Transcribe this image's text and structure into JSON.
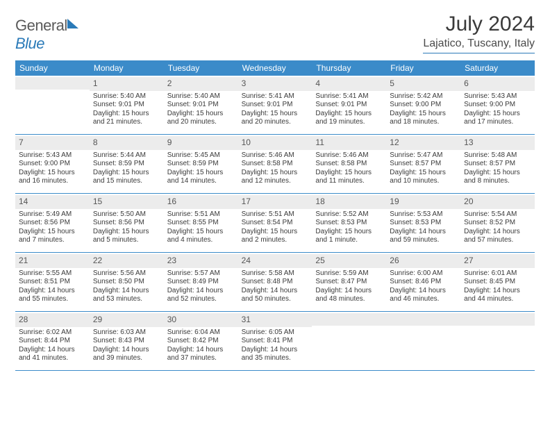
{
  "brand": {
    "word1": "General",
    "word2": "Blue"
  },
  "header": {
    "title": "July 2024",
    "location": "Lajatico, Tuscany, Italy"
  },
  "colors": {
    "brand_blue": "#2a7ab8",
    "header_bg": "#3b8bc9",
    "daynum_bg": "#ececec",
    "text": "#3a3a3a",
    "rule": "#2a7ab8"
  },
  "dow": [
    "Sunday",
    "Monday",
    "Tuesday",
    "Wednesday",
    "Thursday",
    "Friday",
    "Saturday"
  ],
  "weeks": [
    [
      {
        "n": "",
        "sr": "",
        "ss": "",
        "dl": ""
      },
      {
        "n": "1",
        "sr": "Sunrise: 5:40 AM",
        "ss": "Sunset: 9:01 PM",
        "dl": "Daylight: 15 hours and 21 minutes."
      },
      {
        "n": "2",
        "sr": "Sunrise: 5:40 AM",
        "ss": "Sunset: 9:01 PM",
        "dl": "Daylight: 15 hours and 20 minutes."
      },
      {
        "n": "3",
        "sr": "Sunrise: 5:41 AM",
        "ss": "Sunset: 9:01 PM",
        "dl": "Daylight: 15 hours and 20 minutes."
      },
      {
        "n": "4",
        "sr": "Sunrise: 5:41 AM",
        "ss": "Sunset: 9:01 PM",
        "dl": "Daylight: 15 hours and 19 minutes."
      },
      {
        "n": "5",
        "sr": "Sunrise: 5:42 AM",
        "ss": "Sunset: 9:00 PM",
        "dl": "Daylight: 15 hours and 18 minutes."
      },
      {
        "n": "6",
        "sr": "Sunrise: 5:43 AM",
        "ss": "Sunset: 9:00 PM",
        "dl": "Daylight: 15 hours and 17 minutes."
      }
    ],
    [
      {
        "n": "7",
        "sr": "Sunrise: 5:43 AM",
        "ss": "Sunset: 9:00 PM",
        "dl": "Daylight: 15 hours and 16 minutes."
      },
      {
        "n": "8",
        "sr": "Sunrise: 5:44 AM",
        "ss": "Sunset: 8:59 PM",
        "dl": "Daylight: 15 hours and 15 minutes."
      },
      {
        "n": "9",
        "sr": "Sunrise: 5:45 AM",
        "ss": "Sunset: 8:59 PM",
        "dl": "Daylight: 15 hours and 14 minutes."
      },
      {
        "n": "10",
        "sr": "Sunrise: 5:46 AM",
        "ss": "Sunset: 8:58 PM",
        "dl": "Daylight: 15 hours and 12 minutes."
      },
      {
        "n": "11",
        "sr": "Sunrise: 5:46 AM",
        "ss": "Sunset: 8:58 PM",
        "dl": "Daylight: 15 hours and 11 minutes."
      },
      {
        "n": "12",
        "sr": "Sunrise: 5:47 AM",
        "ss": "Sunset: 8:57 PM",
        "dl": "Daylight: 15 hours and 10 minutes."
      },
      {
        "n": "13",
        "sr": "Sunrise: 5:48 AM",
        "ss": "Sunset: 8:57 PM",
        "dl": "Daylight: 15 hours and 8 minutes."
      }
    ],
    [
      {
        "n": "14",
        "sr": "Sunrise: 5:49 AM",
        "ss": "Sunset: 8:56 PM",
        "dl": "Daylight: 15 hours and 7 minutes."
      },
      {
        "n": "15",
        "sr": "Sunrise: 5:50 AM",
        "ss": "Sunset: 8:56 PM",
        "dl": "Daylight: 15 hours and 5 minutes."
      },
      {
        "n": "16",
        "sr": "Sunrise: 5:51 AM",
        "ss": "Sunset: 8:55 PM",
        "dl": "Daylight: 15 hours and 4 minutes."
      },
      {
        "n": "17",
        "sr": "Sunrise: 5:51 AM",
        "ss": "Sunset: 8:54 PM",
        "dl": "Daylight: 15 hours and 2 minutes."
      },
      {
        "n": "18",
        "sr": "Sunrise: 5:52 AM",
        "ss": "Sunset: 8:53 PM",
        "dl": "Daylight: 15 hours and 1 minute."
      },
      {
        "n": "19",
        "sr": "Sunrise: 5:53 AM",
        "ss": "Sunset: 8:53 PM",
        "dl": "Daylight: 14 hours and 59 minutes."
      },
      {
        "n": "20",
        "sr": "Sunrise: 5:54 AM",
        "ss": "Sunset: 8:52 PM",
        "dl": "Daylight: 14 hours and 57 minutes."
      }
    ],
    [
      {
        "n": "21",
        "sr": "Sunrise: 5:55 AM",
        "ss": "Sunset: 8:51 PM",
        "dl": "Daylight: 14 hours and 55 minutes."
      },
      {
        "n": "22",
        "sr": "Sunrise: 5:56 AM",
        "ss": "Sunset: 8:50 PM",
        "dl": "Daylight: 14 hours and 53 minutes."
      },
      {
        "n": "23",
        "sr": "Sunrise: 5:57 AM",
        "ss": "Sunset: 8:49 PM",
        "dl": "Daylight: 14 hours and 52 minutes."
      },
      {
        "n": "24",
        "sr": "Sunrise: 5:58 AM",
        "ss": "Sunset: 8:48 PM",
        "dl": "Daylight: 14 hours and 50 minutes."
      },
      {
        "n": "25",
        "sr": "Sunrise: 5:59 AM",
        "ss": "Sunset: 8:47 PM",
        "dl": "Daylight: 14 hours and 48 minutes."
      },
      {
        "n": "26",
        "sr": "Sunrise: 6:00 AM",
        "ss": "Sunset: 8:46 PM",
        "dl": "Daylight: 14 hours and 46 minutes."
      },
      {
        "n": "27",
        "sr": "Sunrise: 6:01 AM",
        "ss": "Sunset: 8:45 PM",
        "dl": "Daylight: 14 hours and 44 minutes."
      }
    ],
    [
      {
        "n": "28",
        "sr": "Sunrise: 6:02 AM",
        "ss": "Sunset: 8:44 PM",
        "dl": "Daylight: 14 hours and 41 minutes."
      },
      {
        "n": "29",
        "sr": "Sunrise: 6:03 AM",
        "ss": "Sunset: 8:43 PM",
        "dl": "Daylight: 14 hours and 39 minutes."
      },
      {
        "n": "30",
        "sr": "Sunrise: 6:04 AM",
        "ss": "Sunset: 8:42 PM",
        "dl": "Daylight: 14 hours and 37 minutes."
      },
      {
        "n": "31",
        "sr": "Sunrise: 6:05 AM",
        "ss": "Sunset: 8:41 PM",
        "dl": "Daylight: 14 hours and 35 minutes."
      },
      {
        "n": "",
        "sr": "",
        "ss": "",
        "dl": ""
      },
      {
        "n": "",
        "sr": "",
        "ss": "",
        "dl": ""
      },
      {
        "n": "",
        "sr": "",
        "ss": "",
        "dl": ""
      }
    ]
  ]
}
